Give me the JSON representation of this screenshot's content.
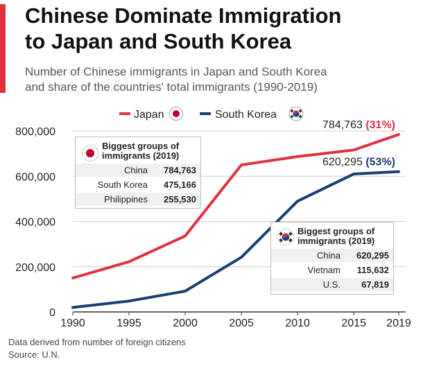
{
  "header": {
    "title_line1": "Chinese Dominate Immigration",
    "title_line2": "to Japan and South Korea",
    "subtitle_line1": "Number of Chinese immigrants in Japan and South Korea",
    "subtitle_line2": "and share of the countries' total immigrants (1990-2019)"
  },
  "colors": {
    "accent": "#e03140",
    "japan": "#e03140",
    "korea": "#1b3d72",
    "axis": "#333333",
    "grid": "#cccccc"
  },
  "chart_data": {
    "type": "line",
    "x": [
      1990,
      1995,
      2000,
      2005,
      2010,
      2015,
      2019
    ],
    "ylim": [
      0,
      800000
    ],
    "y_ticks": [
      0,
      200000,
      400000,
      600000,
      800000
    ],
    "y_tick_labels": [
      "0",
      "200,000",
      "400,000",
      "600,000",
      "800,000"
    ],
    "x_tick_labels": [
      "1990",
      "1995",
      "2000",
      "2005",
      "2010",
      "2015",
      "2019"
    ],
    "grid": true,
    "legend_position": "top-center",
    "series": [
      {
        "name": "Japan",
        "color": "#e03140",
        "values": [
          150000,
          222000,
          336000,
          650000,
          687000,
          716000,
          784763
        ],
        "end_label": "784,763",
        "end_share": "(31%)"
      },
      {
        "name": "South Korea",
        "color": "#1b3d72",
        "values": [
          20000,
          48000,
          92000,
          242000,
          490000,
          610000,
          620295
        ],
        "end_label": "620,295",
        "end_share": "(53%)"
      }
    ]
  },
  "japan_box": {
    "title_line1": "Biggest groups of",
    "title_line2": "immigrants (2019)",
    "rows": [
      {
        "country": "China",
        "value": "784,763"
      },
      {
        "country": "South Korea",
        "value": "475,166"
      },
      {
        "country": "Philippines",
        "value": "255,530"
      }
    ]
  },
  "korea_box": {
    "title_line1": "Biggest groups of",
    "title_line2": "immigrants (2019)",
    "rows": [
      {
        "country": "China",
        "value": "620,295"
      },
      {
        "country": "Vietnam",
        "value": "115,632"
      },
      {
        "country": "U.S.",
        "value": "67,819"
      }
    ]
  },
  "footer": {
    "note": "Data derived from number of foreign citizens",
    "source": "Source: U.N."
  },
  "icons": {
    "japan_flag": "japan-flag-icon",
    "korea_flag": "south-korea-flag-icon"
  }
}
